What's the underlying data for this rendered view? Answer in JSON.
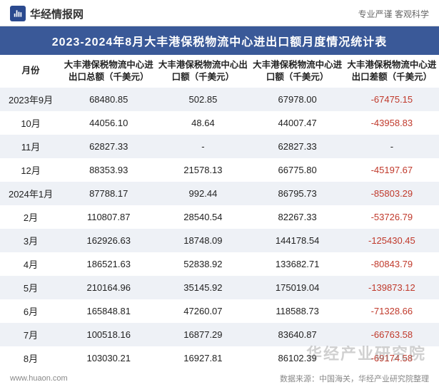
{
  "header": {
    "brand_name": "华经情报网",
    "tagline": "专业严谨    客观科学"
  },
  "title": "2023-2024年8月大丰港保税物流中心进出口额月度情况统计表",
  "table": {
    "columns": [
      "月份",
      "大丰港保税物流中心进出口总额（千美元）",
      "大丰港保税物流中心出口额（千美元）",
      "大丰港保税物流中心进口额（千美元）",
      "大丰港保税物流中心进出口差额（千美元）"
    ],
    "rows": [
      {
        "month": "2023年9月",
        "total": "68480.85",
        "export": "502.85",
        "import": "67978.00",
        "diff": "-67475.15",
        "diff_neg": true
      },
      {
        "month": "10月",
        "total": "44056.10",
        "export": "48.64",
        "import": "44007.47",
        "diff": "-43958.83",
        "diff_neg": true
      },
      {
        "month": "11月",
        "total": "62827.33",
        "export": "-",
        "import": "62827.33",
        "diff": "-",
        "diff_neg": false
      },
      {
        "month": "12月",
        "total": "88353.93",
        "export": "21578.13",
        "import": "66775.80",
        "diff": "-45197.67",
        "diff_neg": true
      },
      {
        "month": "2024年1月",
        "total": "87788.17",
        "export": "992.44",
        "import": "86795.73",
        "diff": "-85803.29",
        "diff_neg": true
      },
      {
        "month": "2月",
        "total": "110807.87",
        "export": "28540.54",
        "import": "82267.33",
        "diff": "-53726.79",
        "diff_neg": true
      },
      {
        "month": "3月",
        "total": "162926.63",
        "export": "18748.09",
        "import": "144178.54",
        "diff": "-125430.45",
        "diff_neg": true
      },
      {
        "month": "4月",
        "total": "186521.63",
        "export": "52838.92",
        "import": "133682.71",
        "diff": "-80843.79",
        "diff_neg": true
      },
      {
        "month": "5月",
        "total": "210164.96",
        "export": "35145.92",
        "import": "175019.04",
        "diff": "-139873.12",
        "diff_neg": true
      },
      {
        "month": "6月",
        "total": "165848.81",
        "export": "47260.07",
        "import": "118588.73",
        "diff": "-71328.66",
        "diff_neg": true
      },
      {
        "month": "7月",
        "total": "100518.16",
        "export": "16877.29",
        "import": "83640.87",
        "diff": "-66763.58",
        "diff_neg": true
      },
      {
        "month": "8月",
        "total": "103030.21",
        "export": "16927.81",
        "import": "86102.39",
        "diff": "-69174.58",
        "diff_neg": true
      }
    ],
    "styling": {
      "type": "table",
      "header_bg": "#3a5998",
      "header_text_color": "#ffffff",
      "row_alt_bg": "#eef1f6",
      "row_bg": "#ffffff",
      "text_color": "#222222",
      "neg_color": "#c0392b",
      "font_size_body": 13,
      "font_size_header": 12.5,
      "col_widths_pct": [
        14,
        21.5,
        21.5,
        21.5,
        21.5
      ],
      "alignment": "center"
    }
  },
  "footer": {
    "site": "www.huaon.com",
    "source": "数据来源：中国海关，华经产业研究院整理"
  },
  "watermark": "华经产业研究院"
}
